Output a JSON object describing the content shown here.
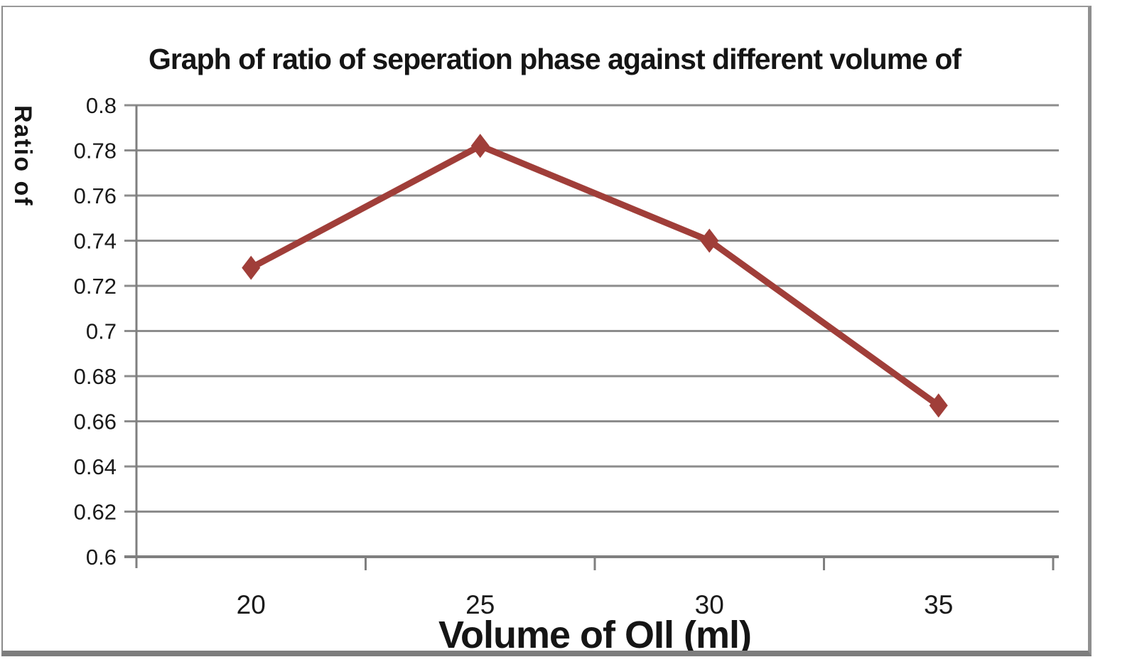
{
  "chart_data": {
    "type": "line",
    "title": "Graph of ratio of seperation phase against different volume of",
    "xlabel": "Volume of OIl (ml)",
    "ylabel": "Ratio of",
    "categories": [
      20,
      25,
      30,
      35
    ],
    "x_tick_labels": [
      "20",
      "25",
      "30",
      "35"
    ],
    "values": [
      0.728,
      0.782,
      0.74,
      0.667
    ],
    "ylim": [
      0.6,
      0.8
    ],
    "y_tick_step": 0.02,
    "y_tick_labels": [
      "0.8",
      "0.78",
      "0.76",
      "0.74",
      "0.72",
      "0.7",
      "0.68",
      "0.66",
      "0.64",
      "0.62",
      "0.6"
    ],
    "grid": true,
    "legend": false,
    "marker": "diamond",
    "series_color": "#A03E39",
    "gridline_color": "#8C8C8C",
    "axis_color": "#7F7F7F",
    "text_color": "#1A1A1A"
  }
}
